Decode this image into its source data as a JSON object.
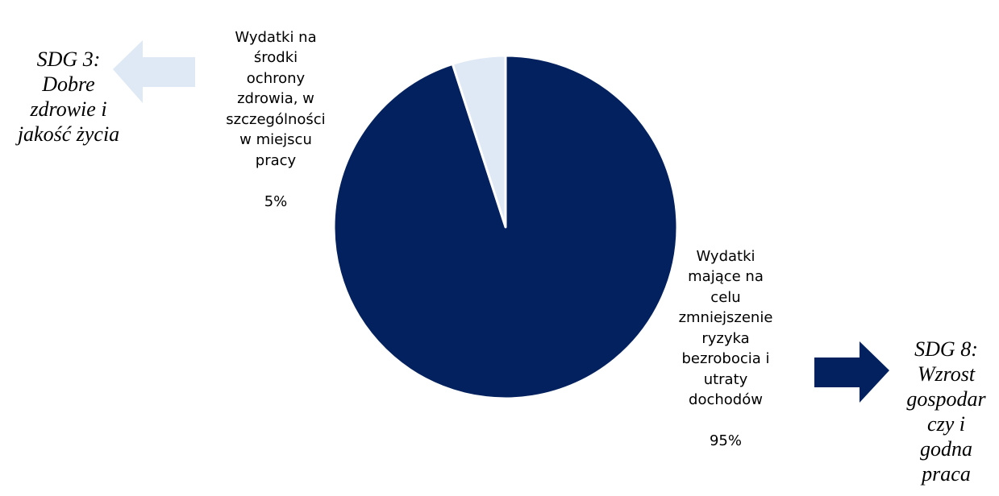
{
  "chart_data": {
    "type": "pie",
    "slices": [
      {
        "label_lines": [
          "Wydatki na",
          "środki",
          "ochrony",
          "zdrowia, w",
          "szczególności",
          "w miejscu",
          "pracy"
        ],
        "value": 5,
        "value_label": "5%",
        "color": "#DEE9F5"
      },
      {
        "label_lines": [
          "Wydatki",
          "mające na",
          "celu",
          "zmniejszenie",
          "ryzyka",
          "bezrobocia i",
          "utraty",
          "dochodów"
        ],
        "value": 95,
        "value_label": "95%",
        "color": "#03215E"
      }
    ],
    "start_angle_deg": -90,
    "direction": "counterclockwise",
    "slice_border_color": "#ffffff"
  },
  "annotations": {
    "left": {
      "lines": [
        "SDG 3:",
        "Dobre",
        "zdrowie i",
        "jakość życia"
      ],
      "arrow_direction": "left",
      "arrow_color": "#DEE9F5"
    },
    "right": {
      "lines": [
        "SDG 8:",
        "Wzrost",
        "gospodar",
        "czy i",
        "godna",
        "praca"
      ],
      "arrow_direction": "right",
      "arrow_color": "#03215E"
    }
  }
}
